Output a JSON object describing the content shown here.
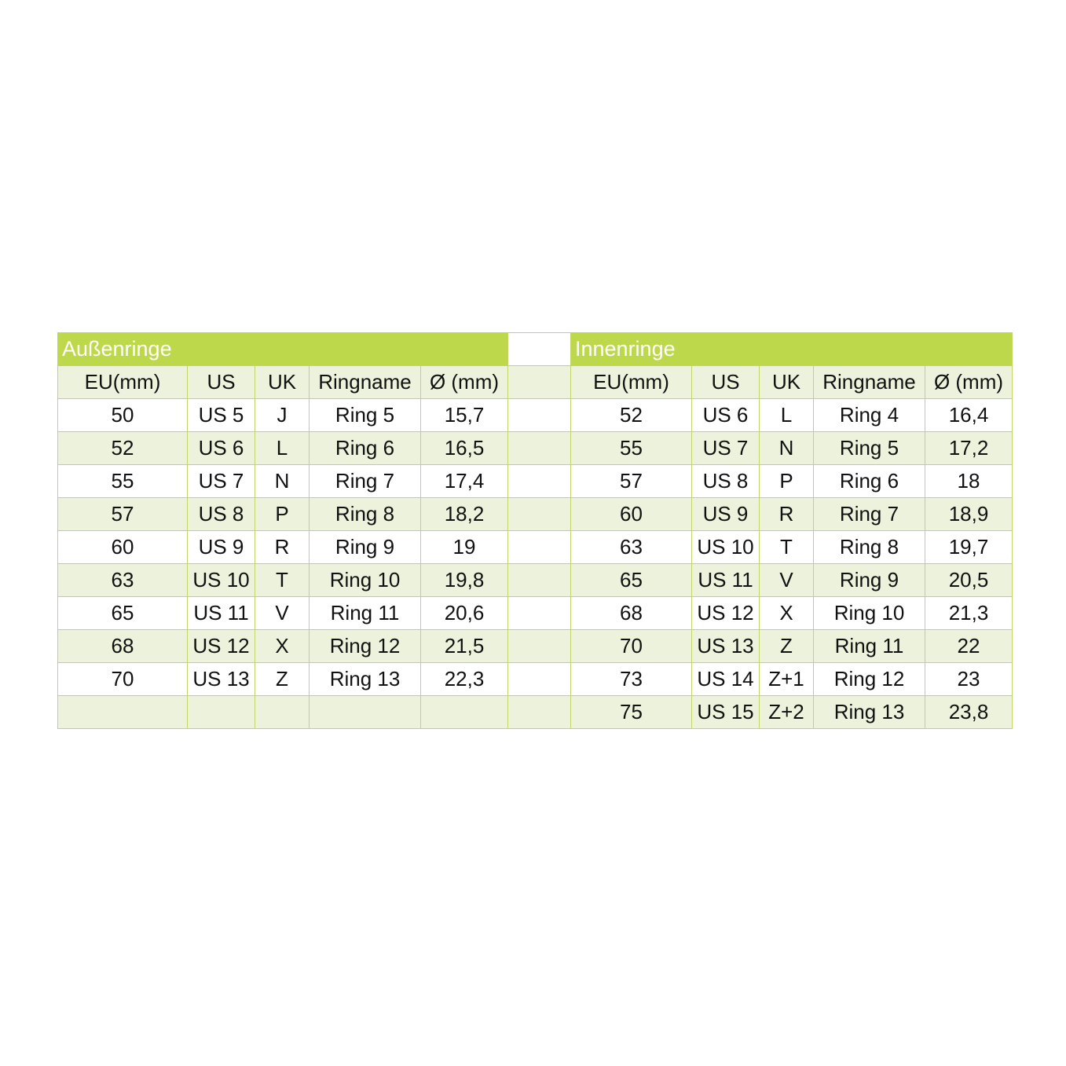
{
  "colors": {
    "header": "#bed84b",
    "band": "#edf2dc",
    "border": "#c3d469"
  },
  "outer": {
    "title": "Außenringe",
    "columns": [
      "EU(mm)",
      "US",
      "UK",
      "Ringname",
      "Ø (mm)"
    ],
    "rows": [
      [
        "50",
        "US 5",
        "J",
        "Ring 5",
        "15,7"
      ],
      [
        "52",
        "US 6",
        "L",
        "Ring 6",
        "16,5"
      ],
      [
        "55",
        "US 7",
        "N",
        "Ring 7",
        "17,4"
      ],
      [
        "57",
        "US 8",
        "P",
        "Ring 8",
        "18,2"
      ],
      [
        "60",
        "US 9",
        "R",
        "Ring 9",
        "19"
      ],
      [
        "63",
        "US 10",
        "T",
        "Ring 10",
        "19,8"
      ],
      [
        "65",
        "US 11",
        "V",
        "Ring 11",
        "20,6"
      ],
      [
        "68",
        "US 12",
        "X",
        "Ring 12",
        "21,5"
      ],
      [
        "70",
        "US 13",
        "Z",
        "Ring 13",
        "22,3"
      ],
      [
        "",
        "",
        "",
        "",
        ""
      ]
    ]
  },
  "inner": {
    "title": "Innenringe",
    "columns": [
      "EU(mm)",
      "US",
      "UK",
      "Ringname",
      "Ø (mm)"
    ],
    "rows": [
      [
        "52",
        "US 6",
        "L",
        "Ring 4",
        "16,4"
      ],
      [
        "55",
        "US 7",
        "N",
        "Ring 5",
        "17,2"
      ],
      [
        "57",
        "US 8",
        "P",
        "Ring 6",
        "18"
      ],
      [
        "60",
        "US 9",
        "R",
        "Ring 7",
        "18,9"
      ],
      [
        "63",
        "US 10",
        "T",
        "Ring 8",
        "19,7"
      ],
      [
        "65",
        "US 11",
        "V",
        "Ring 9",
        "20,5"
      ],
      [
        "68",
        "US 12",
        "X",
        "Ring 10",
        "21,3"
      ],
      [
        "70",
        "US 13",
        "Z",
        "Ring 11",
        "22"
      ],
      [
        "73",
        "US 14",
        "Z+1",
        "Ring 12",
        "23"
      ],
      [
        "75",
        "US 15",
        "Z+2",
        "Ring 13",
        "23,8"
      ]
    ]
  }
}
